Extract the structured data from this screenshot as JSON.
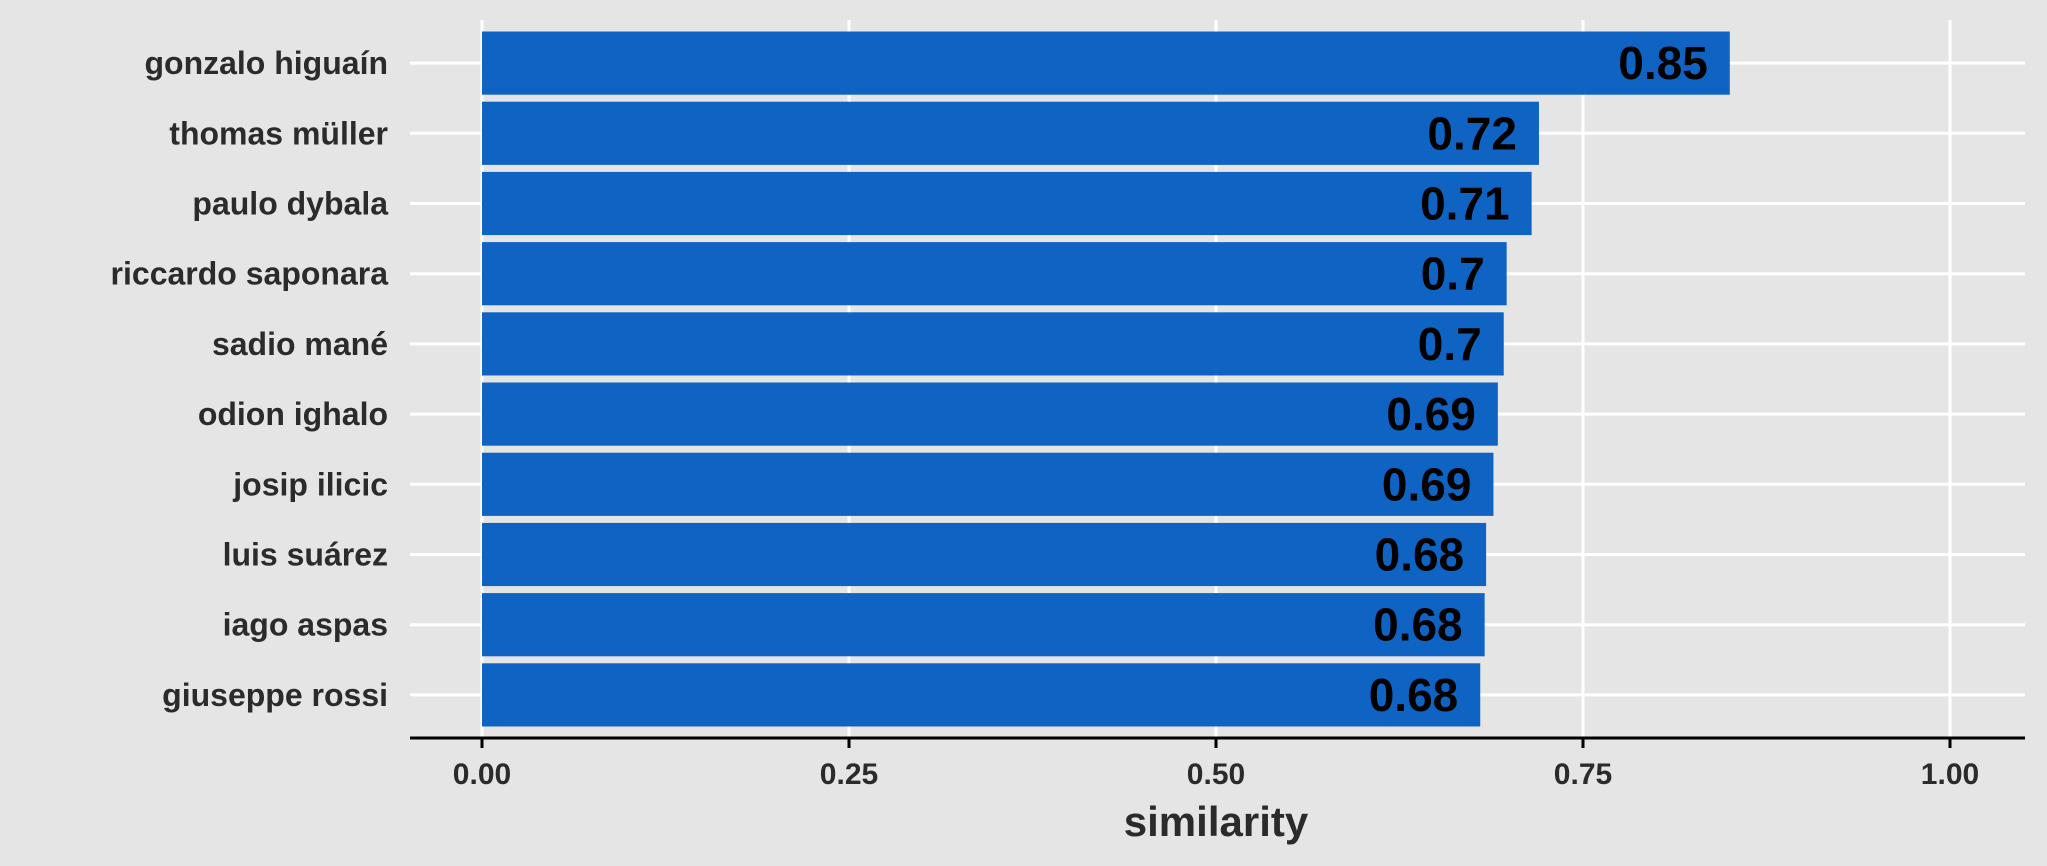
{
  "chart_data": {
    "type": "bar",
    "orientation": "horizontal",
    "categories": [
      "gonzalo higuaín",
      "thomas müller",
      "paulo dybala",
      "riccardo saponara",
      "sadio mané",
      "odion ighalo",
      "josip ilicic",
      "luis suárez",
      "iago aspas",
      "giuseppe rossi"
    ],
    "values": [
      0.85,
      0.72,
      0.715,
      0.698,
      0.696,
      0.692,
      0.689,
      0.684,
      0.683,
      0.68
    ],
    "data_labels": [
      "0.85",
      "0.72",
      "0.71",
      "0.7",
      "0.7",
      "0.69",
      "0.69",
      "0.68",
      "0.68",
      "0.68"
    ],
    "title": "",
    "xlabel": "similarity",
    "ylabel": "",
    "xlim": [
      -0.05,
      1.05
    ],
    "x_ticks": [
      0,
      0.25,
      0.5,
      0.75,
      1.0
    ],
    "x_tick_labels": [
      "0.00",
      "0.25",
      "0.50",
      "0.75",
      "1.00"
    ],
    "grid": true,
    "legend": "none"
  },
  "colors": {
    "background": "#e5e5e5",
    "bar": "#0f63c3",
    "grid": "#ffffff",
    "axis": "#000000",
    "text": "#2b2b2b",
    "value_text": "#000000"
  }
}
